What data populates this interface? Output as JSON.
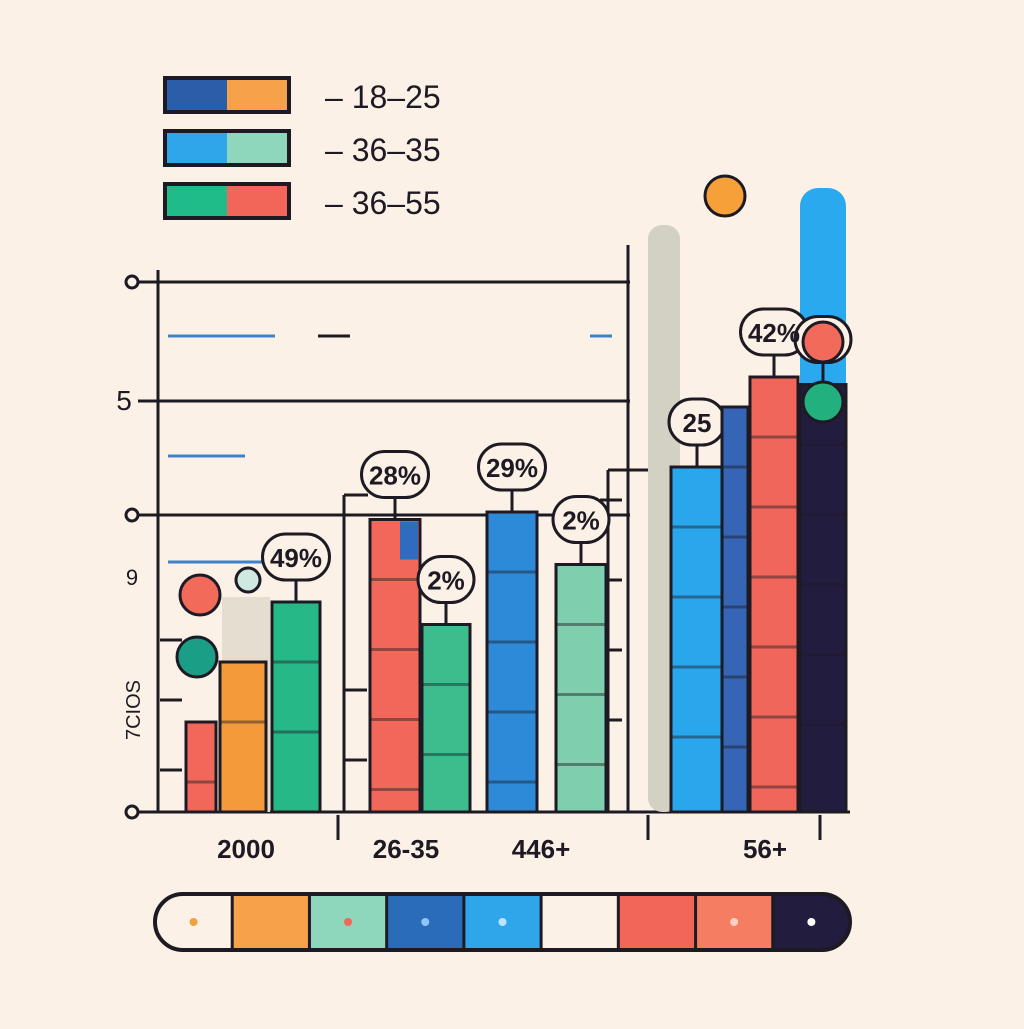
{
  "chart_data": {
    "type": "bar",
    "title": "",
    "xlabel": "",
    "ylabel": "7CIOS",
    "ytick_labels": [
      "5",
      "9"
    ],
    "grid": true,
    "legend_position": "top-left",
    "legend": [
      {
        "label": "– 18–25",
        "colors": [
          "#2a5ea8",
          "#f6a24a"
        ]
      },
      {
        "label": "– 36–35",
        "colors": [
          "#2fa6ea",
          "#8ed6bc"
        ]
      },
      {
        "label": "– 36–55",
        "colors": [
          "#1fbb88",
          "#f2665a"
        ]
      }
    ],
    "categories": [
      "2000",
      "26-35",
      "446+",
      "56+"
    ],
    "bars": [
      {
        "category": "2000",
        "value": 12,
        "color": "#f1675a"
      },
      {
        "category": "2000",
        "value": 20,
        "color": "#f49a3a"
      },
      {
        "category": "2000",
        "value": 28,
        "color": "#27b888",
        "label": "49%"
      },
      {
        "category": "26-35",
        "value": 39,
        "color": "#f1685a",
        "label": "28%"
      },
      {
        "category": "26-35",
        "value": 25,
        "color": "#3dbd8e",
        "label": "2%"
      },
      {
        "category": "446+",
        "value": 40,
        "color": "#2c8ad9",
        "label": "29%"
      },
      {
        "category": "446+",
        "value": 33,
        "color": "#7fcfae",
        "label": "2%"
      },
      {
        "category": "56+",
        "value": 46,
        "color": "#2aa7ec",
        "label": "25"
      },
      {
        "category": "56+",
        "value": 54,
        "color": "#3565b4"
      },
      {
        "category": "56+",
        "value": 58,
        "color": "#f0665a",
        "label": "42%"
      },
      {
        "category": "56+",
        "value": 57,
        "color": "#221c3e",
        "label": "%"
      }
    ],
    "ylim": [
      0,
      60
    ]
  },
  "bottom_legend": {
    "swatches": [
      {
        "color": "#fbf1e6",
        "dot": "#f1a13a"
      },
      {
        "color": "#f6a24a",
        "dot": ""
      },
      {
        "color": "#8ed6bc",
        "dot": "#f2665a"
      },
      {
        "color": "#2a6cb8",
        "dot": "#8ec7ff"
      },
      {
        "color": "#2fa6ea",
        "dot": "#bfe4ff"
      },
      {
        "color": "#fbf1e6",
        "dot": ""
      },
      {
        "color": "#f2665a",
        "dot": ""
      },
      {
        "color": "#f47d62",
        "dot": "#ffd0c0"
      },
      {
        "color": "#221c3e",
        "dot": "#ffffff"
      }
    ]
  }
}
